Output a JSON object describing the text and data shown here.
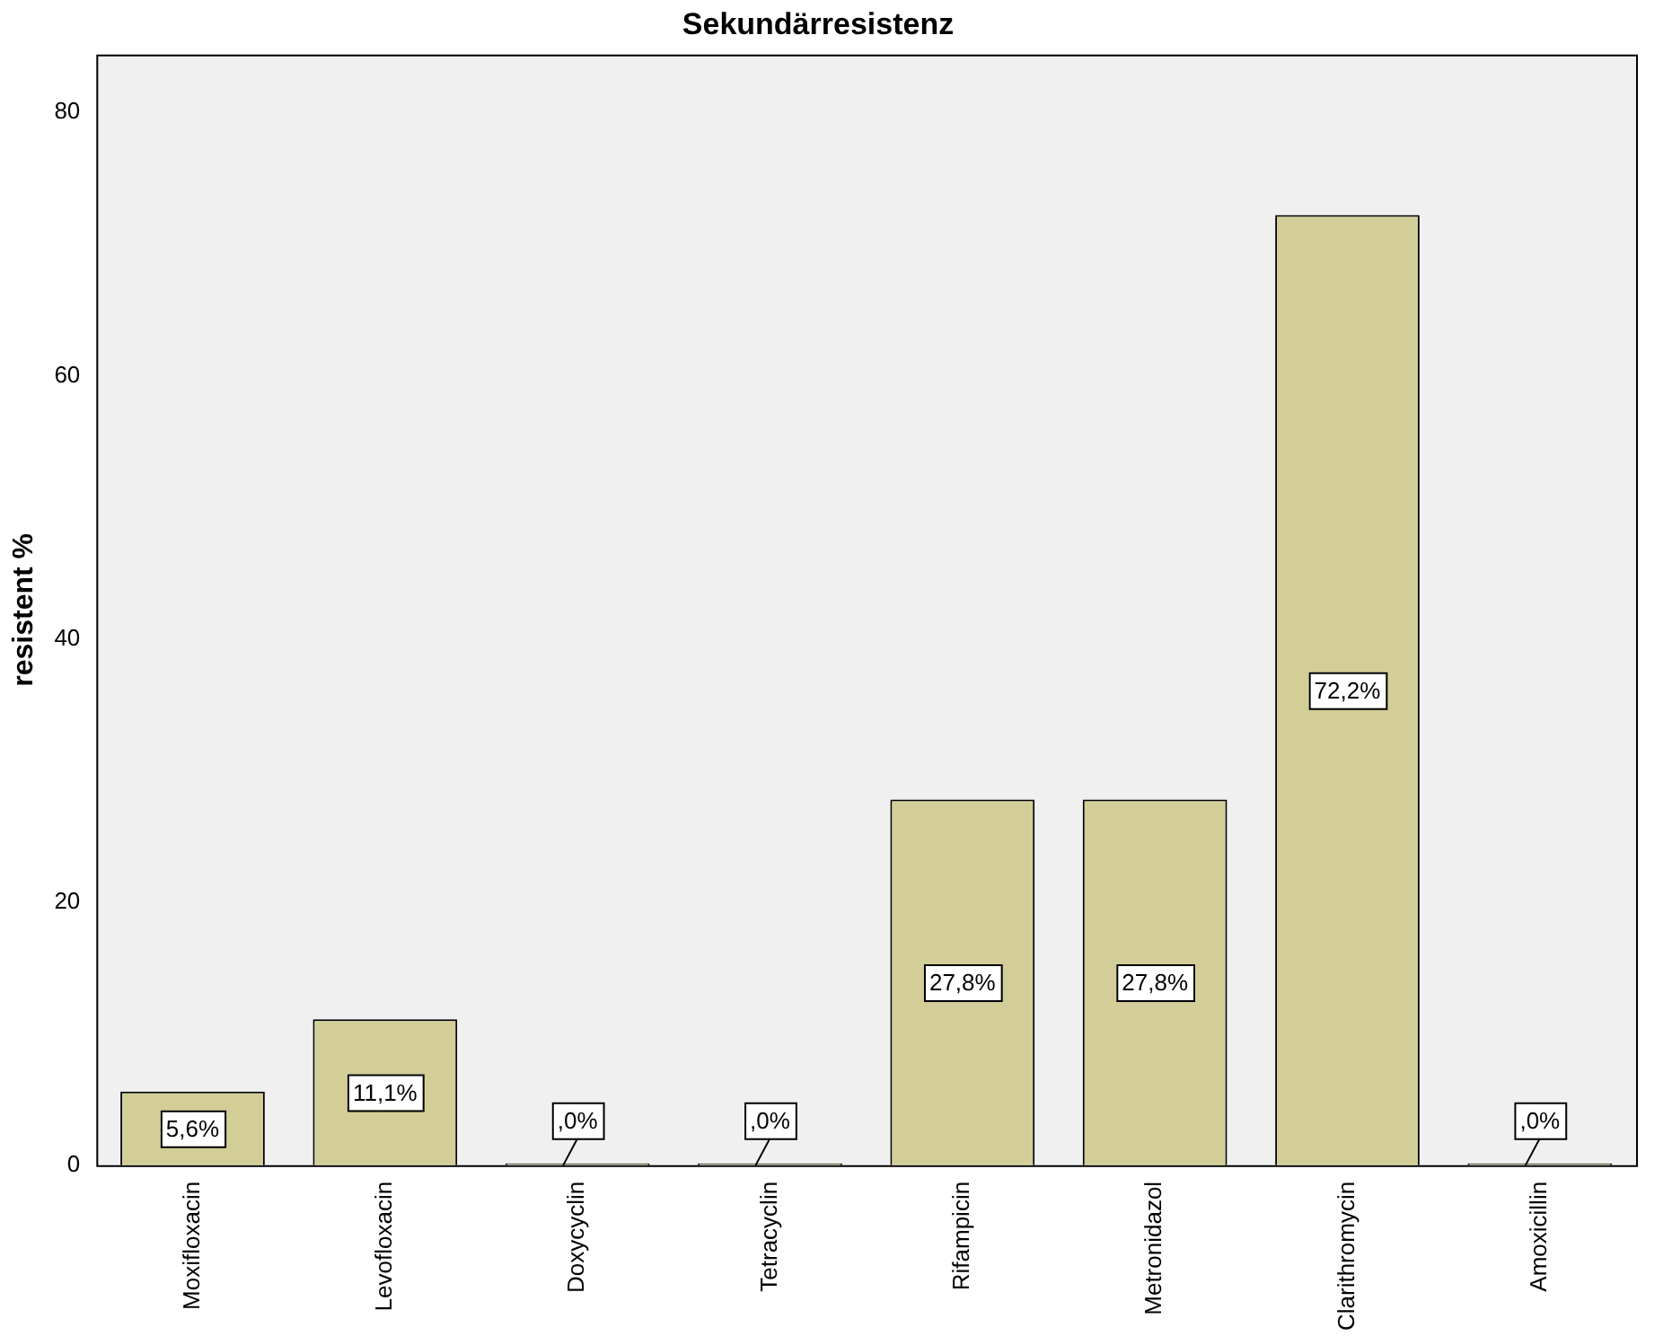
{
  "chart_data": {
    "type": "bar",
    "title": "Sekundärresistenz",
    "ylabel": "resistent %",
    "categories": [
      "Moxifloxacin",
      "Levofloxacin",
      "Doxycyclin",
      "Tetracyclin",
      "Rifampicin",
      "Metronidazol",
      "Clarithromycin",
      "Amoxicillin"
    ],
    "values": [
      5.6,
      11.1,
      0,
      0,
      27.8,
      27.8,
      72.2,
      0
    ],
    "value_labels": [
      "5,6%",
      "11,1%",
      ",0%",
      ",0%",
      "27,8%",
      "27,8%",
      "72,2%",
      ",0%"
    ],
    "color": "#d3ce97",
    "ylim": [
      0,
      84.4
    ],
    "yticks": [
      0,
      20,
      40,
      60,
      80
    ],
    "grid": false,
    "legend": false
  }
}
